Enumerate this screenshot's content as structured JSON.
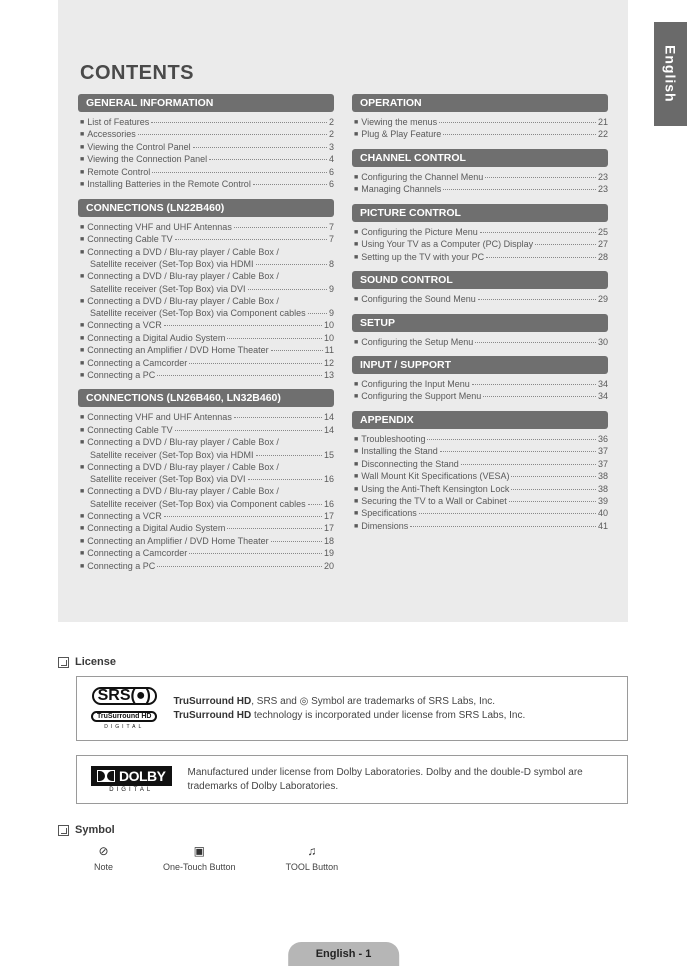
{
  "page": {
    "tab": "English",
    "title": "CONTENTS",
    "footer": "English - 1"
  },
  "license_label": "License",
  "symbol_label": "Symbol",
  "srs": {
    "line1a": "TruSurround HD",
    "line1b": ", SRS and ◎ Symbol are trademarks of SRS Labs, Inc.",
    "line2a": "TruSurround HD",
    "line2b": " technology is incorporated under license from SRS Labs, Inc."
  },
  "dolby": {
    "text": "Manufactured under license from Dolby Laboratories. Dolby and the double-D symbol are trademarks of Dolby Laboratories."
  },
  "symbols": [
    {
      "icon": "⊘",
      "label": "Note"
    },
    {
      "icon": "▣",
      "label": "One-Touch Button"
    },
    {
      "icon": "♫",
      "label": "TOOL Button"
    }
  ],
  "left": [
    {
      "header": "GENERAL INFORMATION",
      "items": [
        {
          "t": "List of Features",
          "p": "2"
        },
        {
          "t": "Accessories",
          "p": "2"
        },
        {
          "t": "Viewing the Control Panel",
          "p": "3"
        },
        {
          "t": "Viewing the Connection Panel",
          "p": "4"
        },
        {
          "t": "Remote Control",
          "p": "6"
        },
        {
          "t": "Installing Batteries in the Remote Control",
          "p": "6"
        }
      ]
    },
    {
      "header": "CONNECTIONS (LN22B460)",
      "items": [
        {
          "t": "Connecting VHF and UHF Antennas",
          "p": "7"
        },
        {
          "t": "Connecting Cable TV",
          "p": "7"
        },
        {
          "t": "Connecting a DVD / Blu-ray player / Cable Box /",
          "cont": "Satellite receiver (Set-Top Box) via HDMI",
          "p": "8"
        },
        {
          "t": "Connecting a DVD / Blu-ray player / Cable Box /",
          "cont": "Satellite receiver (Set-Top Box) via DVI",
          "p": "9"
        },
        {
          "t": "Connecting a DVD / Blu-ray player / Cable Box /",
          "cont": "Satellite receiver (Set-Top Box) via Component cables",
          "p": "9"
        },
        {
          "t": "Connecting a VCR",
          "p": "10"
        },
        {
          "t": "Connecting a Digital Audio System",
          "p": "10"
        },
        {
          "t": "Connecting an Amplifier / DVD Home Theater",
          "p": "11"
        },
        {
          "t": "Connecting a Camcorder",
          "p": "12"
        },
        {
          "t": "Connecting a PC",
          "p": "13"
        }
      ]
    },
    {
      "header": "CONNECTIONS (LN26B460, LN32B460)",
      "items": [
        {
          "t": "Connecting VHF and UHF Antennas",
          "p": "14"
        },
        {
          "t": "Connecting Cable TV",
          "p": "14"
        },
        {
          "t": "Connecting a DVD / Blu-ray player / Cable Box /",
          "cont": "Satellite receiver (Set-Top Box) via HDMI",
          "p": "15"
        },
        {
          "t": "Connecting a DVD / Blu-ray player / Cable Box /",
          "cont": "Satellite receiver (Set-Top Box) via DVI",
          "p": "16"
        },
        {
          "t": "Connecting a DVD / Blu-ray player / Cable Box /",
          "cont": "Satellite receiver (Set-Top Box) via Component cables",
          "p": "16"
        },
        {
          "t": "Connecting a VCR",
          "p": "17"
        },
        {
          "t": "Connecting a Digital Audio System",
          "p": "17"
        },
        {
          "t": "Connecting an Amplifier / DVD Home Theater",
          "p": "18"
        },
        {
          "t": "Connecting a Camcorder",
          "p": "19"
        },
        {
          "t": "Connecting a PC",
          "p": "20"
        }
      ]
    }
  ],
  "right": [
    {
      "header": "OPERATION",
      "items": [
        {
          "t": "Viewing the menus",
          "p": "21"
        },
        {
          "t": "Plug & Play Feature",
          "p": "22"
        }
      ]
    },
    {
      "header": "CHANNEL CONTROL",
      "items": [
        {
          "t": "Configuring the Channel Menu",
          "p": "23"
        },
        {
          "t": "Managing Channels",
          "p": "23"
        }
      ]
    },
    {
      "header": "PICTURE CONTROL",
      "items": [
        {
          "t": "Configuring the Picture Menu",
          "p": "25"
        },
        {
          "t": "Using Your TV as a Computer (PC) Display",
          "p": "27"
        },
        {
          "t": "Setting up the TV with your PC",
          "p": "28"
        }
      ]
    },
    {
      "header": "SOUND CONTROL",
      "items": [
        {
          "t": "Configuring the Sound Menu",
          "p": "29"
        }
      ]
    },
    {
      "header": "SETUP",
      "items": [
        {
          "t": "Configuring the Setup Menu",
          "p": "30"
        }
      ]
    },
    {
      "header": "INPUT / SUPPORT",
      "items": [
        {
          "t": "Configuring the Input Menu",
          "p": "34"
        },
        {
          "t": "Configuring the Support Menu",
          "p": "34"
        }
      ]
    },
    {
      "header": "APPENDIX",
      "items": [
        {
          "t": "Troubleshooting",
          "p": "36"
        },
        {
          "t": "Installing the Stand",
          "p": "37"
        },
        {
          "t": "Disconnecting the Stand",
          "p": "37"
        },
        {
          "t": "Wall Mount Kit Specifications (VESA)",
          "p": "38"
        },
        {
          "t": "Using the Anti-Theft Kensington Lock",
          "p": "38"
        },
        {
          "t": "Securing the TV to a Wall or Cabinet",
          "p": "39"
        },
        {
          "t": "Specifications",
          "p": "40"
        },
        {
          "t": "Dimensions",
          "p": "41"
        }
      ]
    }
  ]
}
